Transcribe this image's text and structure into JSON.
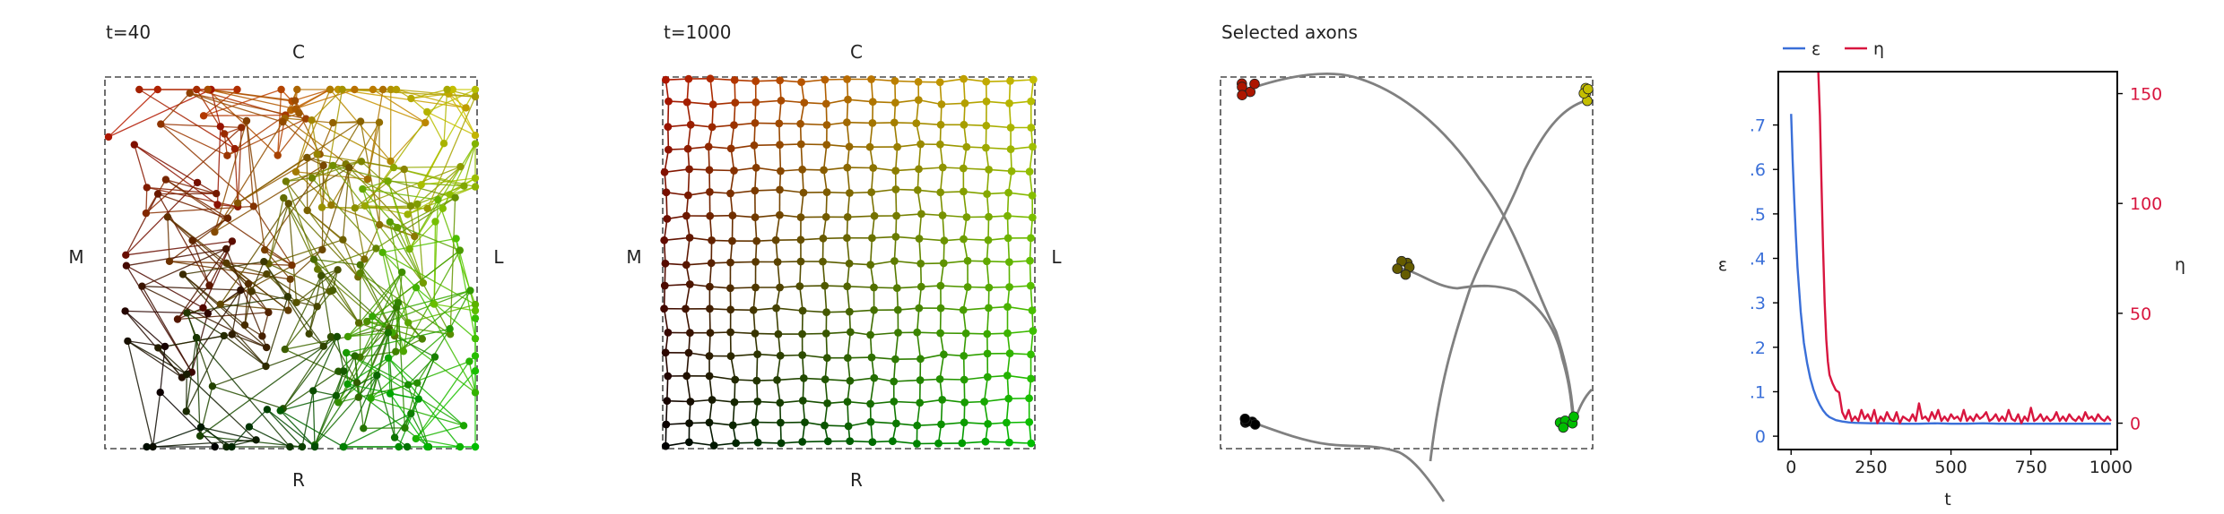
{
  "colors": {
    "frame_dash": "#4a4a4a",
    "axon": "#808080",
    "eps": "#3a6fd8",
    "eta": "#d8163f",
    "corner_top_left": "#cc1a00",
    "corner_top_right": "#e6e000",
    "corner_bottom_left": "#000000",
    "corner_bottom_right": "#00e000"
  },
  "panels": [
    {
      "title": "t=40",
      "labels": {
        "top": "C",
        "bottom": "R",
        "left": "M",
        "right": "L"
      }
    },
    {
      "title": "t=1000",
      "labels": {
        "top": "C",
        "bottom": "R",
        "left": "M",
        "right": "L"
      }
    },
    {
      "title": "Selected axons"
    }
  ],
  "chart_data": {
    "type": "line",
    "xlabel": "t",
    "xlim": [
      -40,
      1020
    ],
    "xticks": [
      "0",
      "250",
      "500",
      "750",
      "1000"
    ],
    "left_axis": {
      "label": "ε",
      "ylim": [
        -0.03,
        0.82
      ],
      "ticks": [
        "0",
        ".1",
        ".2",
        ".3",
        ".4",
        ".5",
        ".6",
        ".7"
      ]
    },
    "right_axis": {
      "label": "η",
      "ylim": [
        -12,
        160
      ],
      "ticks": [
        "0",
        "50",
        "100",
        "150"
      ]
    },
    "legend": {
      "placement": "top-left",
      "entries": [
        "ε",
        "η"
      ]
    },
    "series": [
      {
        "name": "ε",
        "axis": "left",
        "color": "#3a6fd8",
        "x": [
          0,
          5,
          10,
          15,
          20,
          30,
          40,
          50,
          60,
          70,
          80,
          90,
          100,
          110,
          120,
          140,
          160,
          180,
          200,
          250,
          300,
          350,
          400,
          450,
          500,
          550,
          600,
          650,
          700,
          750,
          800,
          850,
          900,
          950,
          1000
        ],
        "y": [
          0.725,
          0.62,
          0.53,
          0.45,
          0.38,
          0.28,
          0.21,
          0.165,
          0.13,
          0.105,
          0.085,
          0.07,
          0.058,
          0.049,
          0.043,
          0.036,
          0.033,
          0.031,
          0.03,
          0.029,
          0.029,
          0.028,
          0.028,
          0.029,
          0.028,
          0.028,
          0.029,
          0.028,
          0.028,
          0.028,
          0.028,
          0.028,
          0.028,
          0.028,
          0.028
        ]
      },
      {
        "name": "η",
        "axis": "right",
        "color": "#d8163f",
        "x": [
          85,
          90,
          95,
          100,
          105,
          110,
          115,
          120,
          125,
          130,
          140,
          150,
          160,
          170,
          180,
          190,
          200,
          210,
          220,
          230,
          240,
          250,
          260,
          270,
          280,
          290,
          300,
          310,
          320,
          330,
          340,
          350,
          360,
          370,
          380,
          390,
          400,
          410,
          420,
          430,
          440,
          450,
          460,
          470,
          480,
          490,
          500,
          510,
          520,
          530,
          540,
          550,
          560,
          570,
          580,
          590,
          600,
          610,
          620,
          630,
          640,
          650,
          660,
          670,
          680,
          690,
          700,
          710,
          720,
          730,
          740,
          750,
          760,
          770,
          780,
          790,
          800,
          810,
          820,
          830,
          840,
          850,
          860,
          870,
          880,
          890,
          900,
          910,
          920,
          930,
          940,
          950,
          960,
          970,
          980,
          990,
          1000
        ],
        "y": [
          160,
          140,
          110,
          80,
          55,
          38,
          28,
          22,
          20,
          18,
          15,
          14,
          5,
          2,
          6,
          1,
          3,
          1,
          6,
          2,
          4,
          1,
          6,
          0,
          3,
          1,
          5,
          2,
          1,
          5,
          0,
          3,
          2,
          1,
          4,
          1,
          9,
          2,
          3,
          1,
          5,
          2,
          6,
          1,
          3,
          1,
          4,
          2,
          3,
          1,
          6,
          1,
          3,
          1,
          4,
          2,
          3,
          5,
          1,
          2,
          4,
          1,
          3,
          1,
          6,
          2,
          1,
          4,
          0,
          3,
          1,
          7,
          1,
          2,
          4,
          1,
          3,
          1,
          2,
          5,
          1,
          3,
          1,
          4,
          2,
          1,
          3,
          1,
          5,
          2,
          3,
          1,
          4,
          2,
          1,
          3,
          1
        ]
      }
    ]
  }
}
